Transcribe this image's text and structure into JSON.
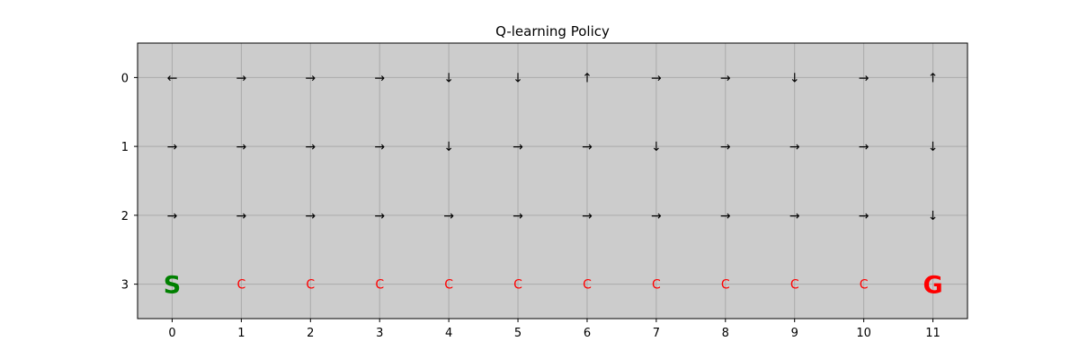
{
  "chart_data": {
    "type": "heatmap",
    "title": "Q-learning Policy",
    "xlabel": "",
    "ylabel": "",
    "x_ticks": [
      "0",
      "1",
      "2",
      "3",
      "4",
      "5",
      "6",
      "7",
      "8",
      "9",
      "10",
      "11"
    ],
    "y_ticks": [
      "0",
      "1",
      "2",
      "3"
    ],
    "xlim": [
      -0.5,
      11.5
    ],
    "ylim": [
      3.5,
      -0.5
    ],
    "grid": true,
    "background_color": "#cccccc",
    "grid_color": "#aaaaaa",
    "policy_rows": [
      [
        "←",
        "→",
        "→",
        "→",
        "↓",
        "↓",
        "↑",
        "→",
        "→",
        "↓",
        "→",
        "↑"
      ],
      [
        "→",
        "→",
        "→",
        "→",
        "↓",
        "→",
        "→",
        "↓",
        "→",
        "→",
        "→",
        "↓"
      ],
      [
        "→",
        "→",
        "→",
        "→",
        "→",
        "→",
        "→",
        "→",
        "→",
        "→",
        "→",
        "↓"
      ],
      [
        "S",
        "C",
        "C",
        "C",
        "C",
        "C",
        "C",
        "C",
        "C",
        "C",
        "C",
        "G"
      ]
    ],
    "cell_styles": {
      "S": {
        "color": "#008000",
        "kind": "special"
      },
      "G": {
        "color": "#ff0000",
        "kind": "special"
      },
      "C": {
        "color": "#ff0000",
        "kind": "cliff"
      }
    },
    "arrow_color": "#000000"
  }
}
